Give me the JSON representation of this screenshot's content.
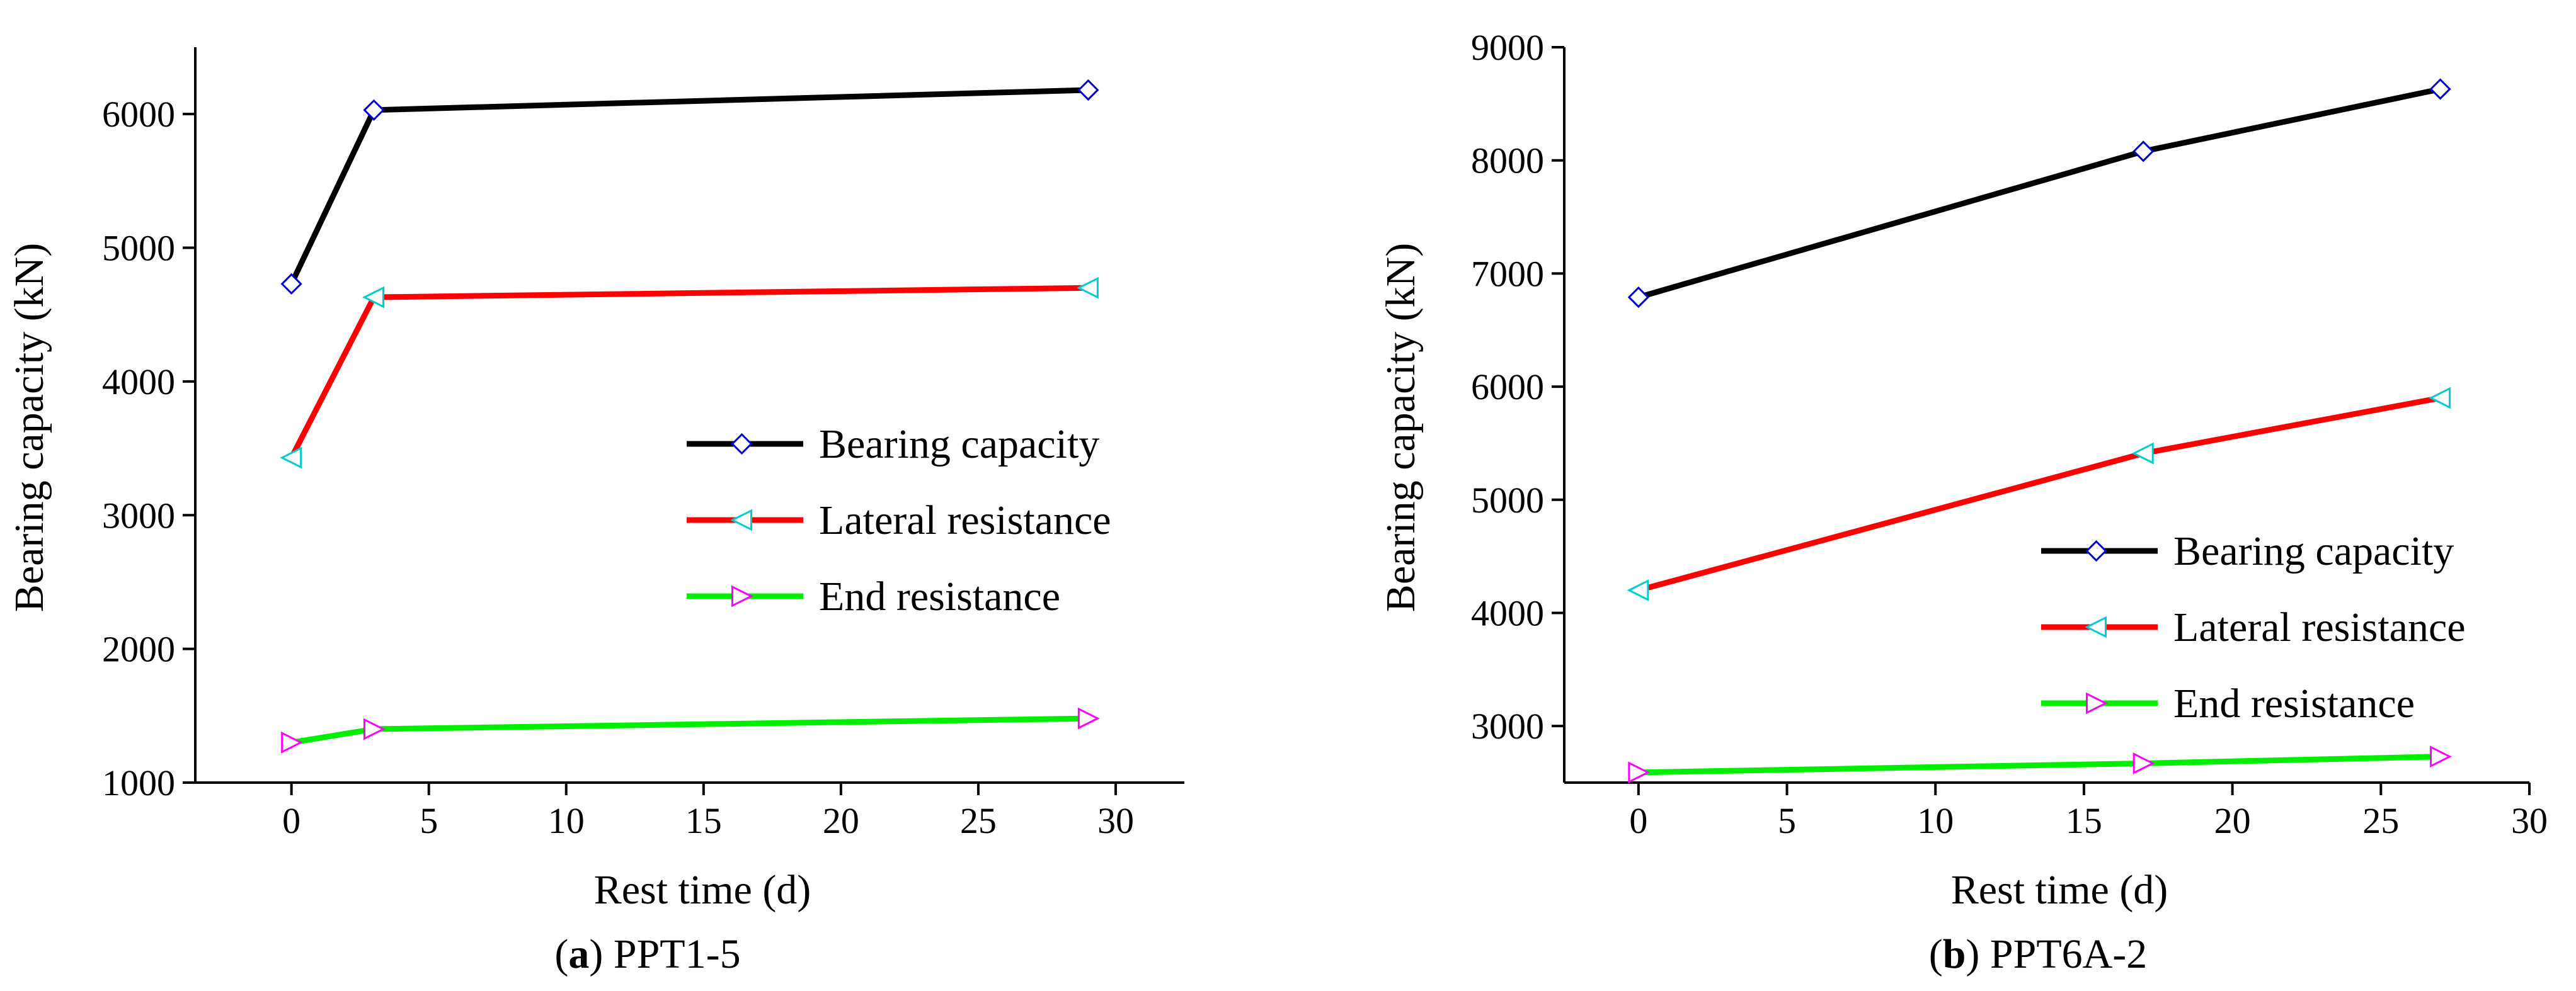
{
  "chart_data": [
    {
      "type": "line",
      "caption_label": "a",
      "caption_text": "PPT1-5",
      "title": "",
      "xlabel": "Rest time (d)",
      "ylabel": "Bearing capacity (kN)",
      "xlim": [
        -3.5,
        32.5
      ],
      "ylim": [
        1000,
        6500
      ],
      "xticks": [
        0,
        5,
        10,
        15,
        20,
        25,
        30
      ],
      "yticks": [
        1000,
        2000,
        3000,
        4000,
        5000,
        6000
      ],
      "legend_position": "center-right",
      "series": [
        {
          "name": "Bearing capacity",
          "color": "#000000",
          "marker": "diamond",
          "marker_color": "#0000cc",
          "x": [
            0,
            3,
            29
          ],
          "y": [
            4730,
            6030,
            6180
          ]
        },
        {
          "name": "Lateral resistance",
          "color": "#ff0000",
          "marker": "triangle-left",
          "marker_color": "#00cccc",
          "x": [
            0,
            3,
            29
          ],
          "y": [
            3430,
            4630,
            4700
          ]
        },
        {
          "name": "End resistance",
          "color": "#00ee00",
          "marker": "triangle-right",
          "marker_color": "#ff00ff",
          "x": [
            0,
            3,
            29
          ],
          "y": [
            1300,
            1400,
            1480
          ]
        }
      ]
    },
    {
      "type": "line",
      "caption_label": "b",
      "caption_text": "PPT6A-2",
      "title": "",
      "xlabel": "Rest time (d)",
      "ylabel": "Bearing capacity (kN)",
      "xlim": [
        -2.5,
        30
      ],
      "ylim": [
        2500,
        9000
      ],
      "xticks": [
        0,
        5,
        10,
        15,
        20,
        25,
        30
      ],
      "yticks": [
        3000,
        4000,
        5000,
        6000,
        7000,
        8000,
        9000
      ],
      "legend_position": "center-right",
      "series": [
        {
          "name": "Bearing capacity",
          "color": "#000000",
          "marker": "diamond",
          "marker_color": "#0000cc",
          "x": [
            0,
            17,
            27
          ],
          "y": [
            6790,
            8080,
            8630
          ]
        },
        {
          "name": "Lateral resistance",
          "color": "#ff0000",
          "marker": "triangle-left",
          "marker_color": "#00cccc",
          "x": [
            0,
            17,
            27
          ],
          "y": [
            4200,
            5410,
            5900
          ]
        },
        {
          "name": "End resistance",
          "color": "#00ee00",
          "marker": "triangle-right",
          "marker_color": "#ff00ff",
          "x": [
            0,
            17,
            27
          ],
          "y": [
            2590,
            2670,
            2730
          ]
        }
      ]
    }
  ]
}
